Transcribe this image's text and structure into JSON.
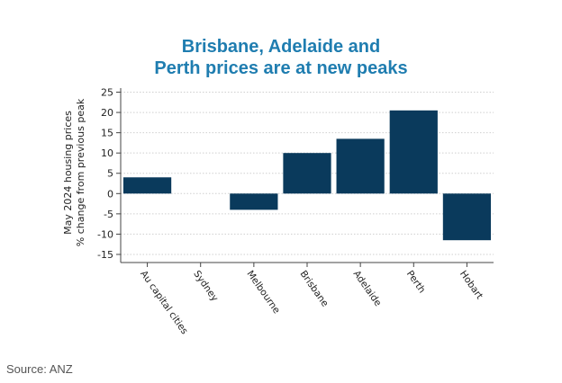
{
  "chart_data": {
    "type": "bar",
    "title_lines": [
      "Brisbane, Adelaide and",
      "Perth prices are at new peaks"
    ],
    "ylabel_lines": [
      "May 2024 housing prices",
      "% change from previous peak"
    ],
    "xlabel": "",
    "categories": [
      "Au capital cities",
      "Sydney",
      "Melbourne",
      "Brisbane",
      "Adelaide",
      "Perth",
      "Hobart"
    ],
    "values": [
      4,
      0,
      -4,
      10,
      13.5,
      20.5,
      -11.5
    ],
    "ylim": [
      -17,
      26
    ],
    "yticks": [
      -15,
      -10,
      -5,
      0,
      5,
      10,
      15,
      20,
      25
    ],
    "grid": true,
    "bar_color": "#0a3a5c",
    "title_color": "#1f7db0"
  },
  "footer": {
    "source": "Source: ANZ"
  }
}
